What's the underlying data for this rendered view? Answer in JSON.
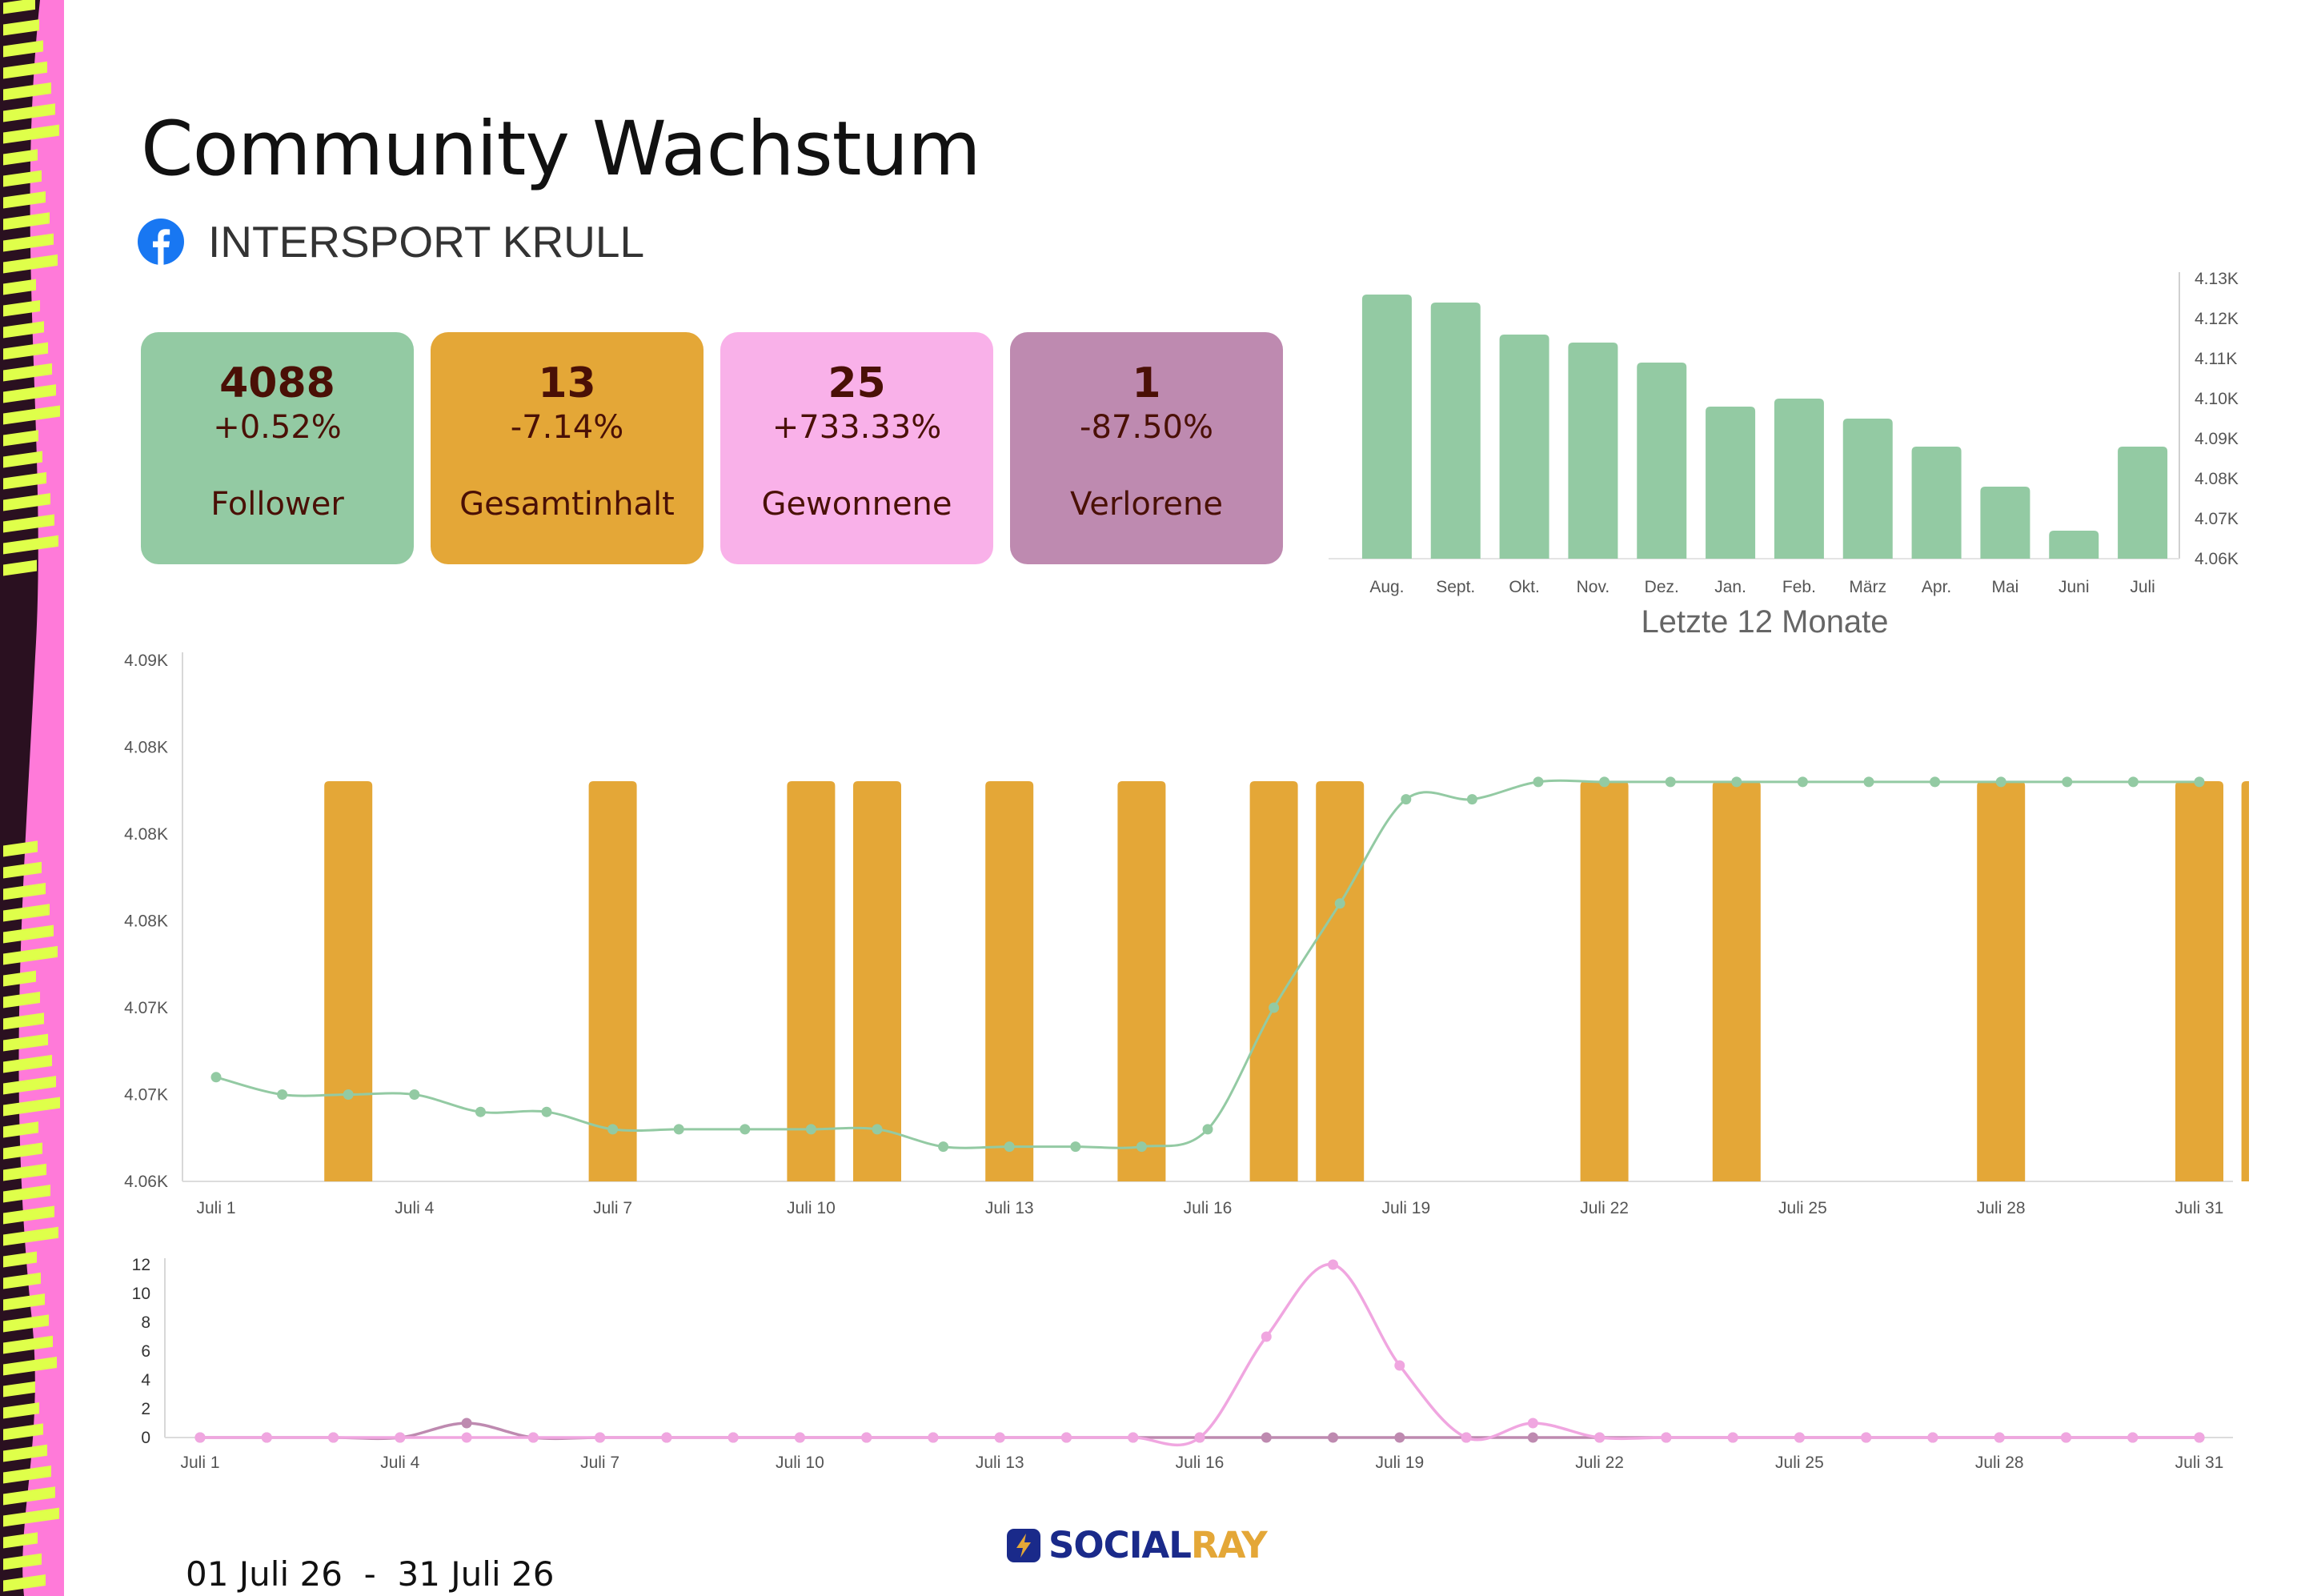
{
  "page": {
    "title": "Community Wachstum",
    "account_name": "INTERSPORT KRULL",
    "platform_icon": "facebook-icon",
    "date_range": "01 Juli 26  -  31 Juli 26",
    "logo": {
      "brand": "SOCIAL",
      "accent": "RAY",
      "icon": "lightning-bolt-icon"
    }
  },
  "colors": {
    "follower": "#93caa3",
    "content": "#e4a737",
    "gained": "#f9b1e9",
    "lost": "#be8ab0",
    "card_text": "#4a1006",
    "fb_blue": "#1877f2"
  },
  "cards": [
    {
      "value": "4088",
      "change": "+0.52%",
      "label": "Follower",
      "color": "#93caa3"
    },
    {
      "value": "13",
      "change": "-7.14%",
      "label": "Gesamtinhalt",
      "color": "#e4a737"
    },
    {
      "value": "25",
      "change": "+733.33%",
      "label": "Gewonnene",
      "color": "#f9b1e9"
    },
    {
      "value": "1",
      "change": "-87.50%",
      "label": "Verlorene",
      "color": "#be8ab0"
    }
  ],
  "chart_data": [
    {
      "type": "bar",
      "caption": "Letzte 12 Monate",
      "categories": [
        "Aug.",
        "Sept.",
        "Okt.",
        "Nov.",
        "Dez.",
        "Jan.",
        "Feb.",
        "März",
        "Apr.",
        "Mai",
        "Juni",
        "Juli"
      ],
      "values": [
        4126,
        4124,
        4116,
        4114,
        4109,
        4098,
        4100,
        4095,
        4088,
        4078,
        4067,
        4088
      ],
      "ylim": [
        4060,
        4130
      ],
      "yticks": [
        4060,
        4070,
        4080,
        4090,
        4100,
        4110,
        4120,
        4130
      ],
      "yticklabels": [
        "4.06K",
        "4.07K",
        "4.08K",
        "4.09K",
        "4.10K",
        "4.11K",
        "4.12K",
        "4.13K"
      ],
      "yaxis_side": "right",
      "color": "#93caa3"
    },
    {
      "type": "bar+line",
      "x": [
        1,
        2,
        3,
        4,
        5,
        6,
        7,
        8,
        9,
        10,
        11,
        12,
        13,
        14,
        15,
        16,
        17,
        18,
        19,
        20,
        21,
        22,
        23,
        24,
        25,
        26,
        27,
        28,
        29,
        30,
        31
      ],
      "xticks": [
        1,
        4,
        7,
        10,
        13,
        16,
        19,
        22,
        25,
        28,
        31
      ],
      "xticklabels": [
        "Juli 1",
        "Juli 4",
        "Juli 7",
        "Juli 10",
        "Juli 13",
        "Juli 16",
        "Juli 19",
        "Juli 22",
        "Juli 25",
        "Juli 28",
        "Juli 31"
      ],
      "ylim": [
        4061,
        4091
      ],
      "yticks": [
        4061,
        4066,
        4071,
        4076,
        4081,
        4086,
        4091
      ],
      "yticklabels": [
        "4.06K",
        "4.07K",
        "4.07K",
        "4.08K",
        "4.08K",
        "4.08K",
        "4.09K"
      ],
      "posts_days": [
        2,
        6,
        9,
        10,
        12,
        14,
        16,
        17,
        21,
        23,
        27,
        30,
        31
      ],
      "bar_color": "#e4a737",
      "follower_line": [
        4067,
        4066,
        4066,
        4066,
        4065,
        4065,
        4064,
        4064,
        4064,
        4064,
        4064,
        4063,
        4063,
        4063,
        4063,
        4064,
        4071,
        4077,
        4083,
        4083,
        4084,
        4084,
        4084,
        4084,
        4084,
        4084,
        4084,
        4084,
        4084,
        4084,
        4084
      ],
      "line_color": "#93caa3"
    },
    {
      "type": "line",
      "x": [
        1,
        2,
        3,
        4,
        5,
        6,
        7,
        8,
        9,
        10,
        11,
        12,
        13,
        14,
        15,
        16,
        17,
        18,
        19,
        20,
        21,
        22,
        23,
        24,
        25,
        26,
        27,
        28,
        29,
        30,
        31
      ],
      "xticks": [
        1,
        4,
        7,
        10,
        13,
        16,
        19,
        22,
        25,
        28,
        31
      ],
      "xticklabels": [
        "Juli 1",
        "Juli 4",
        "Juli 7",
        "Juli 10",
        "Juli 13",
        "Juli 16",
        "Juli 19",
        "Juli 22",
        "Juli 25",
        "Juli 28",
        "Juli 31"
      ],
      "ylim": [
        0,
        12
      ],
      "yticks": [
        0,
        2,
        4,
        6,
        8,
        10,
        12
      ],
      "series": [
        {
          "values": [
            0,
            0,
            0,
            0,
            1,
            0,
            0,
            0,
            0,
            0,
            0,
            0,
            0,
            0,
            0,
            0,
            0,
            0,
            0,
            0,
            0,
            0,
            0,
            0,
            0,
            0,
            0,
            0,
            0,
            0,
            0
          ],
          "color": "#be8ab0"
        },
        {
          "values": [
            0,
            0,
            0,
            0,
            0,
            0,
            0,
            0,
            0,
            0,
            0,
            0,
            0,
            0,
            0,
            0,
            7,
            12,
            5,
            0,
            1,
            0,
            0,
            0,
            0,
            0,
            0,
            0,
            0,
            0,
            0
          ],
          "color": "#f0a6e0"
        }
      ]
    }
  ]
}
